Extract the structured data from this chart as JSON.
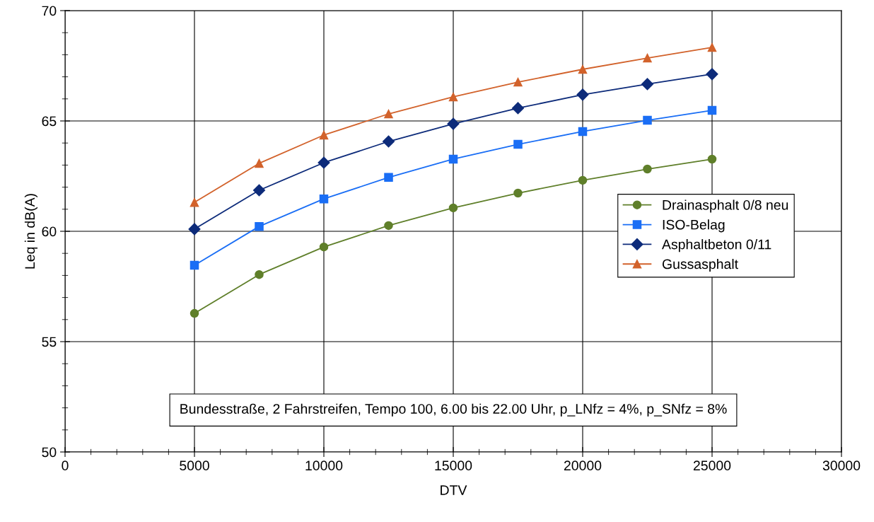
{
  "chart_data": {
    "type": "line",
    "xlabel": "DTV",
    "ylabel": "Leq in dB(A)",
    "x": [
      5000,
      7500,
      10000,
      12500,
      15000,
      17500,
      20000,
      22500,
      25000
    ],
    "series": [
      {
        "name": "Drainasphalt 0/8 neu",
        "color": "#5f7f2a",
        "marker": "circle",
        "values": [
          56.28,
          58.04,
          59.29,
          60.26,
          61.06,
          61.73,
          62.31,
          62.82,
          63.27
        ]
      },
      {
        "name": "ISO-Belag",
        "color": "#1a6ef5",
        "marker": "square",
        "values": [
          58.46,
          60.22,
          61.47,
          62.44,
          63.27,
          63.94,
          64.52,
          65.03,
          65.48
        ]
      },
      {
        "name": "Asphaltbeton 0/11",
        "color": "#0d2b7a",
        "marker": "diamond",
        "values": [
          60.1,
          61.86,
          63.11,
          64.07,
          64.87,
          65.58,
          66.19,
          66.67,
          67.12
        ]
      },
      {
        "name": "Gussasphalt",
        "color": "#d2622b",
        "marker": "triangle",
        "values": [
          61.31,
          63.08,
          64.36,
          65.32,
          66.09,
          66.76,
          67.34,
          67.85,
          68.33
        ]
      }
    ],
    "xlim": [
      0,
      30000
    ],
    "xticks": [
      0,
      5000,
      10000,
      15000,
      20000,
      25000,
      30000
    ],
    "ylim": [
      50,
      70
    ],
    "yticks": [
      50,
      55,
      60,
      65,
      70
    ],
    "grid": true,
    "legend": "right",
    "line_style": "solid",
    "annotations": [
      "Bundesstraße, 2 Fahrstreifen, Tempo 100, 6.00 bis 22.00 Uhr, p_LNfz = 4%, p_SNfz = 8%"
    ]
  }
}
